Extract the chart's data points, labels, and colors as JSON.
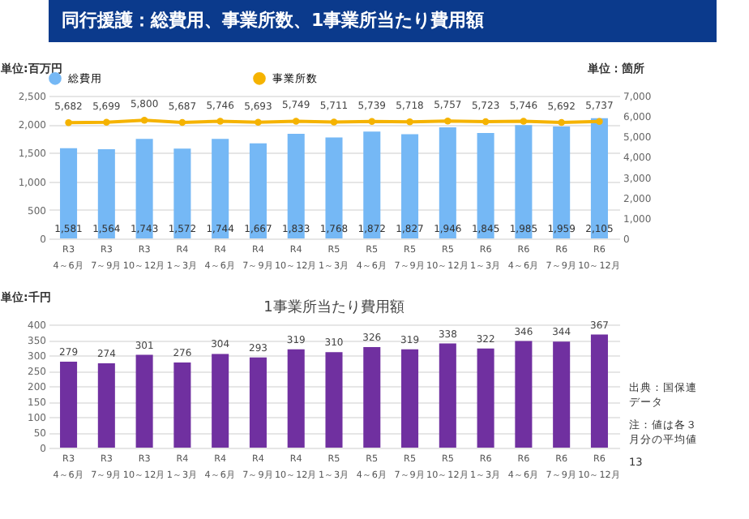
{
  "chart_data": [
    {
      "type": "bar",
      "title": "同行援護：総費用、事業所数、1事業所当たり費用額",
      "ylabel": "単位:百万円",
      "y2label": "単位：箇所",
      "categories": [
        "R3\n4～6月",
        "R3\n7～9月",
        "R3\n10～12月",
        "R4\n1～3月",
        "R4\n4～6月",
        "R4\n7～9月",
        "R4\n10～12月",
        "R5\n1～3月",
        "R5\n4～6月",
        "R5\n7～9月",
        "R5\n10～12月",
        "R6\n1～3月",
        "R6\n4～6月",
        "R6\n7～9月",
        "R6\n10～12月"
      ],
      "series": [
        {
          "name": "総費用",
          "color": "#75b8f5",
          "values": [
            1581,
            1564,
            1743,
            1572,
            1744,
            1667,
            1833,
            1768,
            1872,
            1827,
            1946,
            1845,
            1985,
            1959,
            2105
          ],
          "value_labels": [
            "1,581",
            "1,564",
            "1,743",
            "1,572",
            "1,744",
            "1,667",
            "1,833",
            "1,768",
            "1,872",
            "1,827",
            "1,946",
            "1,845",
            "1,985",
            "1,959",
            "2,105"
          ]
        },
        {
          "name": "事業所数",
          "type": "line",
          "axis": "y2",
          "color": "#f5b300",
          "values": [
            5682,
            5699,
            5800,
            5687,
            5746,
            5693,
            5749,
            5711,
            5739,
            5718,
            5757,
            5723,
            5746,
            5692,
            5737
          ],
          "value_labels": [
            "5,682",
            "5,699",
            "5,800",
            "5,687",
            "5,746",
            "5,693",
            "5,749",
            "5,711",
            "5,739",
            "5,718",
            "5,757",
            "5,723",
            "5,746",
            "5,692",
            "5,737"
          ]
        }
      ],
      "ylim": [
        0,
        2500
      ],
      "yticks": [
        0,
        {
          "value": 500,
          "label": "500"
        },
        {
          "value": 1000,
          "label": "1,000"
        },
        {
          "value": 1500,
          "label": "1,500"
        },
        {
          "value": 2000,
          "label": "2,000"
        },
        {
          "value": 2500,
          "label": "2,500"
        }
      ],
      "y2lim": [
        0,
        7000
      ],
      "y2ticks": [
        0,
        {
          "value": 1000,
          "label": "1,000"
        },
        {
          "value": 2000,
          "label": "2,000"
        },
        {
          "value": 3000,
          "label": "3,000"
        },
        {
          "value": 4000,
          "label": "4,000"
        },
        {
          "value": 5000,
          "label": "5,000"
        },
        {
          "value": 6000,
          "label": "6,000"
        },
        {
          "value": 7000,
          "label": "7,000"
        }
      ],
      "grid": "y",
      "legend": "top",
      "marker": "circle"
    },
    {
      "type": "bar",
      "title": "1事業所当たり費用額",
      "ylabel": "単位:千円",
      "categories": [
        "R3\n4～6月",
        "R3\n7～9月",
        "R3\n10～12月",
        "R4\n1～3月",
        "R4\n4～6月",
        "R4\n7～9月",
        "R4\n10～12月",
        "R5\n1～3月",
        "R5\n4～6月",
        "R5\n7～9月",
        "R5\n10～12月",
        "R6\n1～3月",
        "R6\n4～6月",
        "R6\n7～9月",
        "R6\n10～12月"
      ],
      "series": [
        {
          "color": "#7030a0",
          "values": [
            279,
            274,
            301,
            276,
            304,
            293,
            319,
            310,
            326,
            319,
            338,
            322,
            346,
            344,
            367
          ]
        }
      ],
      "ylim": [
        0,
        400
      ],
      "yticks": [
        0,
        50,
        100,
        150,
        200,
        250,
        300,
        350,
        400
      ],
      "data_labels": true,
      "grid": "y",
      "annotations": [
        "出典：国保連データ",
        "注：値は各３月分の平均値",
        "13"
      ]
    }
  ]
}
